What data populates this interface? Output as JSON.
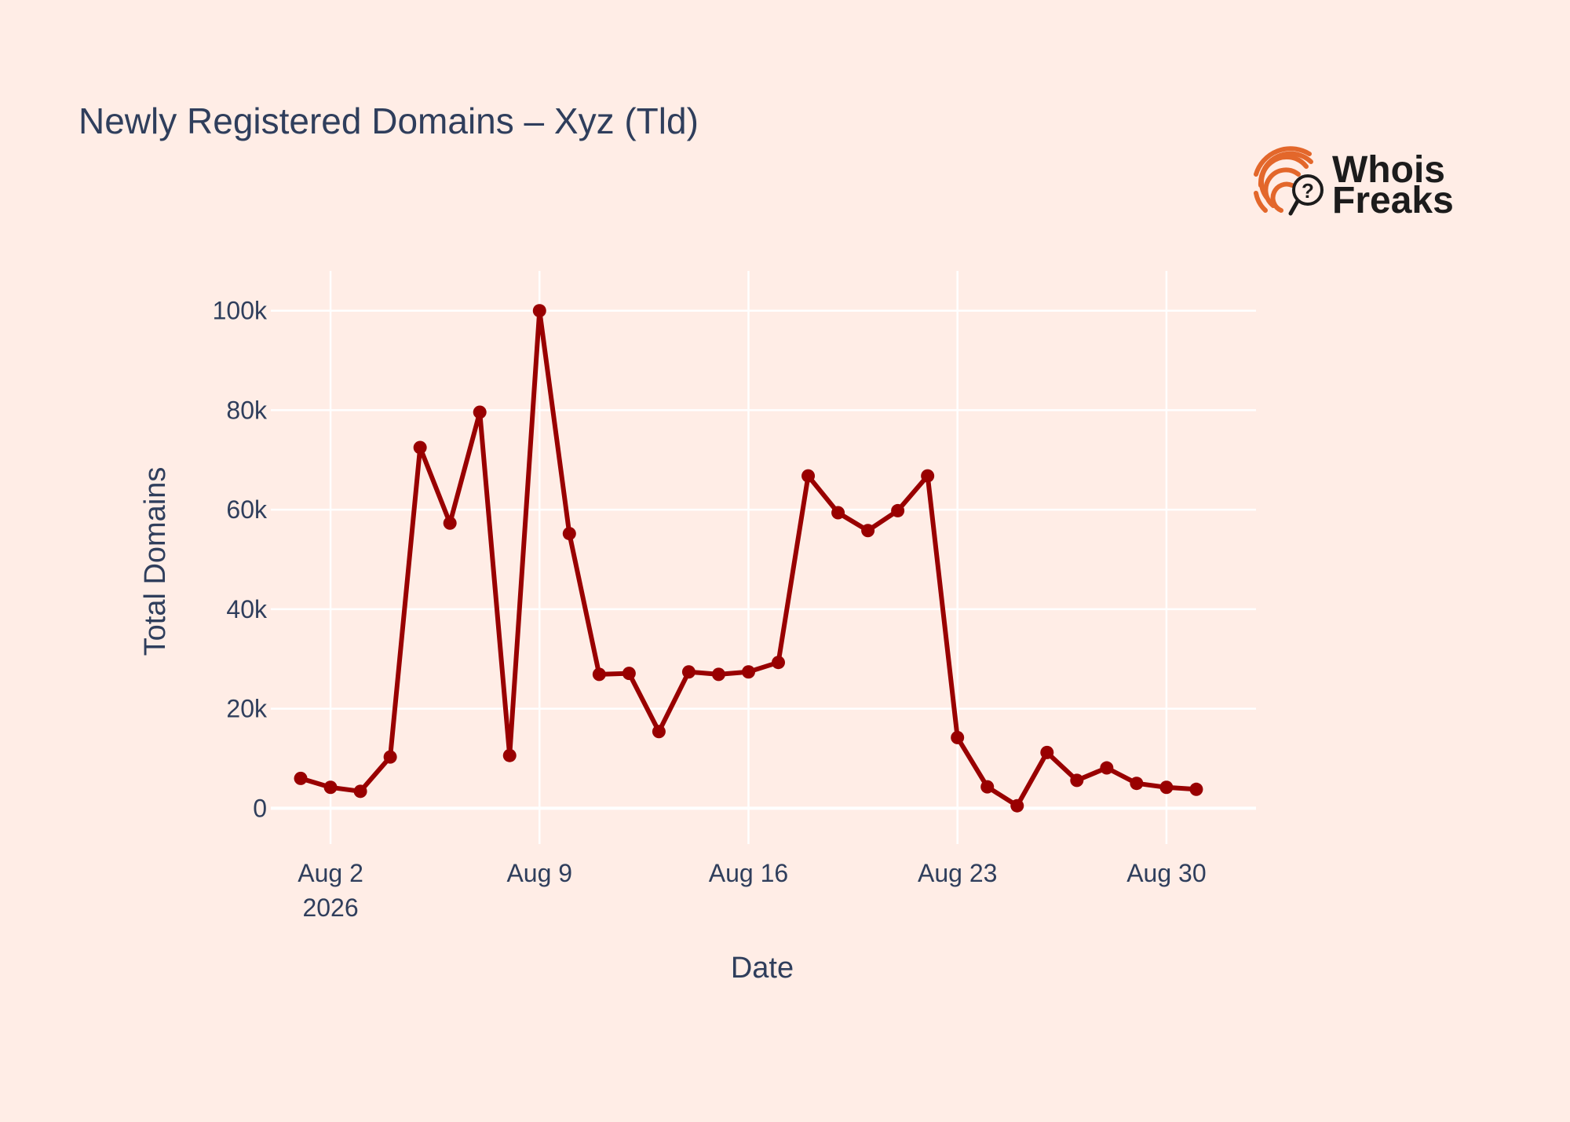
{
  "chart_data": {
    "type": "line",
    "title": "Newly Registered Domains – Xyz (Tld)",
    "xlabel": "Date",
    "ylabel": "Total Domains",
    "x": [
      "2026-08-01",
      "2026-08-02",
      "2026-08-03",
      "2026-08-04",
      "2026-08-05",
      "2026-08-06",
      "2026-08-07",
      "2026-08-08",
      "2026-08-09",
      "2026-08-10",
      "2026-08-11",
      "2026-08-12",
      "2026-08-13",
      "2026-08-14",
      "2026-08-15",
      "2026-08-16",
      "2026-08-17",
      "2026-08-18",
      "2026-08-19",
      "2026-08-20",
      "2026-08-21",
      "2026-08-22",
      "2026-08-23",
      "2026-08-24",
      "2026-08-25",
      "2026-08-26",
      "2026-08-27",
      "2026-08-28",
      "2026-08-29",
      "2026-08-30",
      "2026-08-31"
    ],
    "series": [
      {
        "color": "#990000",
        "values": [
          6000,
          4200,
          3400,
          10300,
          72500,
          57300,
          79600,
          10600,
          100000,
          55200,
          26900,
          27100,
          15400,
          27400,
          26900,
          27400,
          29300,
          66800,
          59400,
          55800,
          59800,
          66800,
          14200,
          4300,
          500,
          11200,
          5600,
          8100,
          5000,
          4200,
          3800
        ]
      }
    ],
    "xlim": [
      "2026-07-31T00:00",
      "2026-09-02T00:00"
    ],
    "ylim": [
      -7200,
      108000
    ],
    "x_ticks": [
      {
        "date": "2026-08-02",
        "label": "Aug 2",
        "sublabel": "2026"
      },
      {
        "date": "2026-08-09",
        "label": "Aug 9",
        "sublabel": ""
      },
      {
        "date": "2026-08-16",
        "label": "Aug 16",
        "sublabel": ""
      },
      {
        "date": "2026-08-23",
        "label": "Aug 23",
        "sublabel": ""
      },
      {
        "date": "2026-08-30",
        "label": "Aug 30",
        "sublabel": ""
      }
    ],
    "y_ticks": [
      {
        "value": 0,
        "label": "0"
      },
      {
        "value": 20000,
        "label": "20k"
      },
      {
        "value": 40000,
        "label": "40k"
      },
      {
        "value": 60000,
        "label": "60k"
      },
      {
        "value": 80000,
        "label": "80k"
      },
      {
        "value": 100000,
        "label": "100k"
      }
    ],
    "grid": true,
    "legend": "none"
  },
  "logo": {
    "line1": "Whois",
    "line2": "Freaks",
    "icon": "fingerprint-magnifier-icon",
    "accent_color": "#e3672b"
  }
}
